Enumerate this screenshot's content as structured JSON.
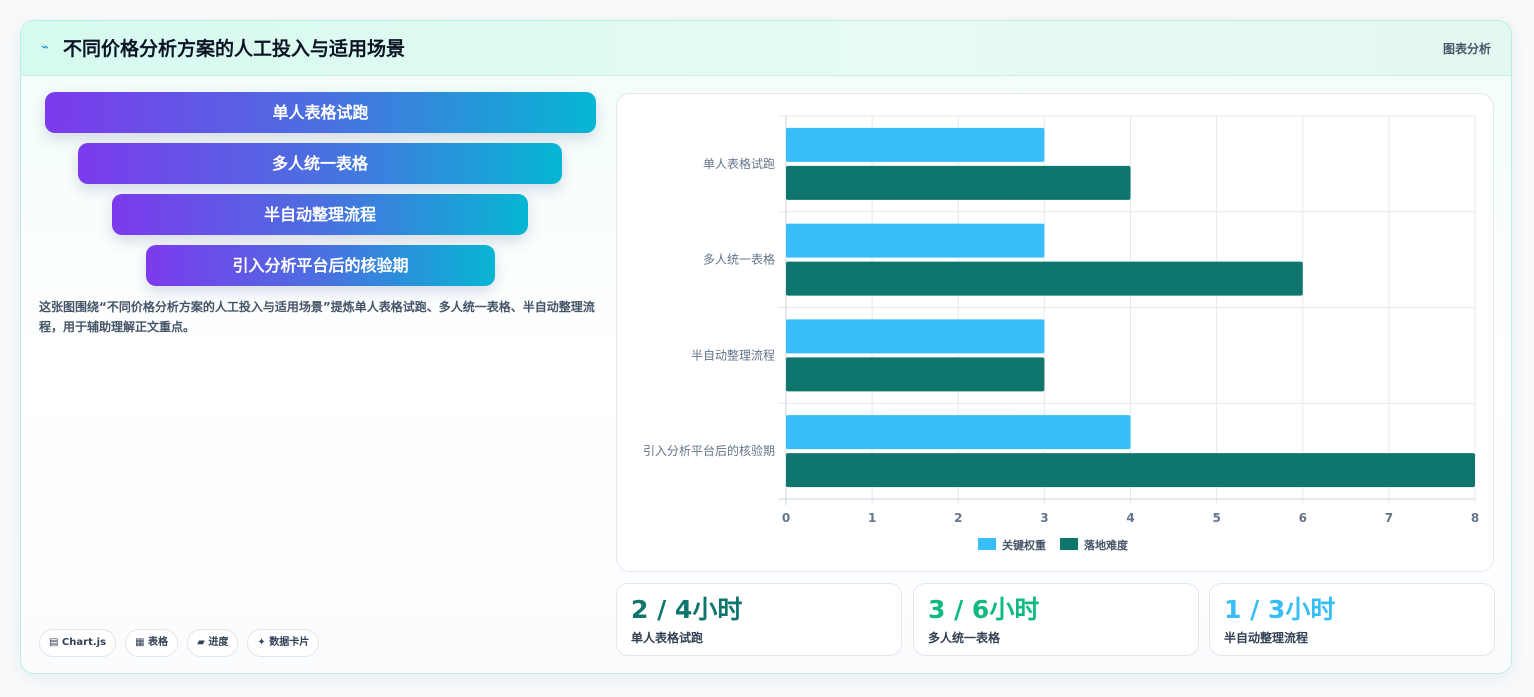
{
  "header": {
    "title": "不同价格分析方案的人工投入与适用场景",
    "tag": "图表分析",
    "icon": "line-chart-icon"
  },
  "funnel": {
    "steps": [
      "单人表格试跑",
      "多人统一表格",
      "半自动整理流程",
      "引入分析平台后的核验期"
    ],
    "gradient": [
      "#7c3aed",
      "#06b6d4"
    ]
  },
  "description": "这张图围绕“不同价格分析方案的人工投入与适用场景”提炼单人表格试跑、多人统一表格、半自动整理流程，用于辅助理解正文重点。",
  "chips": [
    "▤ Chart.js",
    "▦ 表格",
    "▰ 进度",
    "✦ 数据卡片"
  ],
  "chart_data": {
    "type": "bar",
    "orientation": "horizontal",
    "categories": [
      "单人表格试跑",
      "多人统一表格",
      "半自动整理流程",
      "引入分析平台后的核验期"
    ],
    "series": [
      {
        "name": "关键权重",
        "values": [
          3,
          3,
          3,
          4
        ],
        "color": "#38bdf8"
      },
      {
        "name": "落地难度",
        "values": [
          4,
          6,
          3,
          8
        ],
        "color": "#0f766e"
      }
    ],
    "xlim": [
      0,
      8
    ],
    "x_ticks": [
      "0",
      "1",
      "2",
      "3",
      "4",
      "5",
      "6",
      "7",
      "8"
    ],
    "grid": true,
    "legend_position": "bottom"
  },
  "stats": [
    {
      "value": "2 / 4小时",
      "label": "单人表格试跑",
      "color": "#0f766e"
    },
    {
      "value": "3 / 6小时",
      "label": "多人统一表格",
      "color": "#10b981"
    },
    {
      "value": "1 / 3小时",
      "label": "半自动整理流程",
      "color": "#38bdf8"
    }
  ]
}
